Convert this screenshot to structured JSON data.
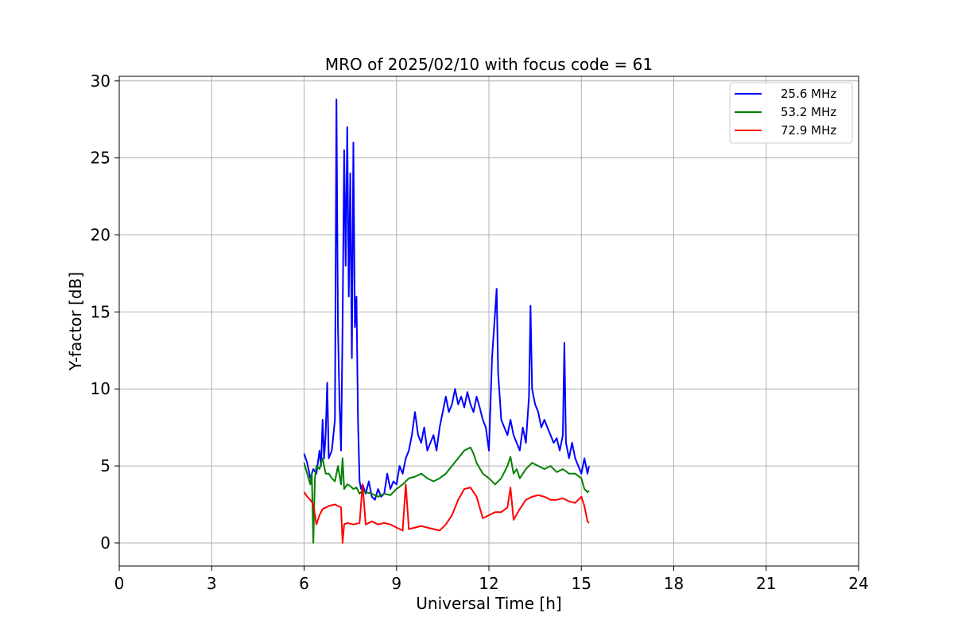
{
  "chart_data": {
    "type": "line",
    "title": "MRO of 2025/02/10 with focus code = 61",
    "xlabel": "Universal Time [h]",
    "ylabel": "Y-factor [dB]",
    "xlim": [
      0,
      24
    ],
    "ylim": [
      -1.5,
      30.3
    ],
    "xticks": [
      0,
      3,
      6,
      9,
      12,
      15,
      18,
      21,
      24
    ],
    "yticks": [
      0,
      5,
      10,
      15,
      20,
      25,
      30
    ],
    "grid": true,
    "legend_position": "top-right",
    "series": [
      {
        "name": "25.6 MHz",
        "color": "#0000ff",
        "x": [
          6.0,
          6.1,
          6.2,
          6.3,
          6.4,
          6.5,
          6.55,
          6.6,
          6.65,
          6.7,
          6.75,
          6.8,
          6.9,
          7.0,
          7.05,
          7.1,
          7.15,
          7.2,
          7.25,
          7.3,
          7.35,
          7.4,
          7.45,
          7.5,
          7.55,
          7.6,
          7.65,
          7.7,
          7.75,
          7.8,
          7.85,
          7.9,
          8.0,
          8.1,
          8.2,
          8.3,
          8.4,
          8.5,
          8.6,
          8.7,
          8.8,
          8.9,
          9.0,
          9.1,
          9.2,
          9.3,
          9.4,
          9.5,
          9.6,
          9.7,
          9.8,
          9.9,
          10.0,
          10.1,
          10.2,
          10.3,
          10.4,
          10.5,
          10.6,
          10.7,
          10.8,
          10.9,
          11.0,
          11.1,
          11.2,
          11.3,
          11.4,
          11.5,
          11.6,
          11.7,
          11.8,
          11.9,
          12.0,
          12.1,
          12.2,
          12.25,
          12.3,
          12.35,
          12.4,
          12.5,
          12.6,
          12.7,
          12.8,
          12.9,
          13.0,
          13.1,
          13.2,
          13.3,
          13.35,
          13.4,
          13.5,
          13.6,
          13.7,
          13.8,
          13.9,
          14.0,
          14.1,
          14.2,
          14.3,
          14.4,
          14.45,
          14.5,
          14.6,
          14.7,
          14.8,
          14.9,
          15.0,
          15.1,
          15.2,
          15.25
        ],
        "values": [
          5.8,
          5.2,
          4.2,
          4.8,
          4.5,
          6.0,
          5.0,
          8.0,
          5.5,
          7.0,
          10.4,
          5.5,
          6.0,
          8.0,
          28.8,
          14.0,
          9.0,
          6.0,
          14.0,
          25.5,
          18.0,
          27.0,
          16.0,
          24.0,
          12.0,
          26.0,
          14.0,
          16.0,
          8.0,
          4.0,
          3.5,
          3.8,
          3.2,
          4.0,
          3.0,
          2.8,
          3.5,
          3.0,
          3.2,
          4.5,
          3.5,
          4.0,
          3.8,
          5.0,
          4.5,
          5.5,
          6.0,
          7.0,
          8.5,
          7.0,
          6.5,
          7.5,
          6.0,
          6.5,
          7.0,
          6.0,
          7.5,
          8.5,
          9.5,
          8.5,
          9.0,
          10.0,
          9.0,
          9.5,
          8.8,
          9.8,
          9.0,
          8.5,
          9.5,
          8.8,
          8.0,
          7.5,
          6.0,
          12.0,
          15.0,
          16.5,
          11.0,
          9.5,
          8.0,
          7.5,
          7.0,
          8.0,
          7.0,
          6.5,
          6.0,
          7.5,
          6.5,
          9.5,
          15.4,
          10.0,
          9.0,
          8.5,
          7.5,
          8.0,
          7.5,
          7.0,
          6.5,
          6.8,
          6.0,
          7.0,
          13.0,
          6.5,
          5.5,
          6.5,
          5.5,
          5.0,
          4.5,
          5.5,
          4.5,
          5.0
        ]
      },
      {
        "name": "53.2 MHz",
        "color": "#008000",
        "x": [
          6.0,
          6.1,
          6.2,
          6.25,
          6.3,
          6.35,
          6.4,
          6.5,
          6.6,
          6.7,
          6.8,
          6.9,
          7.0,
          7.1,
          7.2,
          7.25,
          7.3,
          7.4,
          7.5,
          7.6,
          7.7,
          7.8,
          7.9,
          8.0,
          8.2,
          8.4,
          8.6,
          8.8,
          9.0,
          9.2,
          9.4,
          9.6,
          9.8,
          10.0,
          10.2,
          10.4,
          10.6,
          10.8,
          11.0,
          11.2,
          11.4,
          11.5,
          11.6,
          11.8,
          12.0,
          12.2,
          12.4,
          12.6,
          12.7,
          12.8,
          12.9,
          13.0,
          13.2,
          13.4,
          13.6,
          13.8,
          14.0,
          14.2,
          14.4,
          14.6,
          14.8,
          15.0,
          15.1,
          15.2,
          15.25
        ],
        "values": [
          5.2,
          4.5,
          3.8,
          4.5,
          0.0,
          4.2,
          5.0,
          4.8,
          5.5,
          4.5,
          4.5,
          4.2,
          4.0,
          5.0,
          3.8,
          5.5,
          3.5,
          3.8,
          3.7,
          3.5,
          3.6,
          3.2,
          3.4,
          3.3,
          3.2,
          3.0,
          3.2,
          3.1,
          3.5,
          3.8,
          4.2,
          4.3,
          4.5,
          4.2,
          4.0,
          4.2,
          4.5,
          5.0,
          5.5,
          6.0,
          6.2,
          5.8,
          5.2,
          4.5,
          4.2,
          3.8,
          4.2,
          5.0,
          5.6,
          4.5,
          4.8,
          4.2,
          4.8,
          5.2,
          5.0,
          4.8,
          5.0,
          4.6,
          4.8,
          4.5,
          4.5,
          4.2,
          3.5,
          3.3,
          3.4
        ]
      },
      {
        "name": "72.9 MHz",
        "color": "#ff0000",
        "x": [
          6.0,
          6.1,
          6.2,
          6.3,
          6.4,
          6.5,
          6.6,
          6.8,
          7.0,
          7.2,
          7.25,
          7.3,
          7.4,
          7.6,
          7.8,
          7.9,
          8.0,
          8.2,
          8.4,
          8.6,
          8.8,
          9.0,
          9.2,
          9.3,
          9.4,
          9.6,
          9.8,
          10.0,
          10.2,
          10.4,
          10.6,
          10.8,
          11.0,
          11.2,
          11.4,
          11.6,
          11.8,
          12.0,
          12.2,
          12.4,
          12.6,
          12.7,
          12.8,
          13.0,
          13.2,
          13.4,
          13.6,
          13.8,
          14.0,
          14.2,
          14.4,
          14.6,
          14.8,
          15.0,
          15.1,
          15.2,
          15.25
        ],
        "values": [
          3.3,
          3.0,
          2.8,
          2.5,
          1.2,
          1.8,
          2.2,
          2.4,
          2.5,
          2.3,
          0.0,
          1.2,
          1.3,
          1.2,
          1.3,
          3.8,
          1.2,
          1.4,
          1.2,
          1.3,
          1.2,
          1.0,
          0.8,
          3.8,
          0.9,
          1.0,
          1.1,
          1.0,
          0.9,
          0.8,
          1.2,
          1.8,
          2.8,
          3.5,
          3.6,
          3.0,
          1.6,
          1.8,
          2.0,
          2.0,
          2.3,
          3.6,
          1.5,
          2.2,
          2.8,
          3.0,
          3.1,
          3.0,
          2.8,
          2.8,
          2.9,
          2.7,
          2.6,
          3.0,
          2.4,
          1.4,
          1.3
        ]
      }
    ]
  }
}
